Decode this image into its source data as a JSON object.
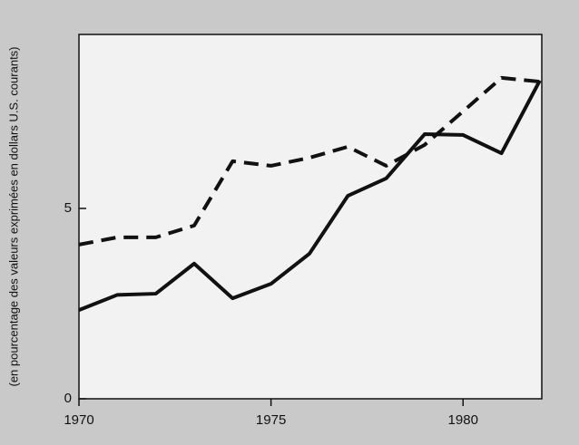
{
  "chart_data": {
    "type": "line",
    "y_label": "(en pourcentage des valeurs exprimées en dollars U.S. courants)",
    "x": [
      1970,
      1971,
      1972,
      1973,
      1974,
      1975,
      1976,
      1977,
      1978,
      1979,
      1980,
      1981,
      1982
    ],
    "series": [
      {
        "color": "#111111",
        "dash": "solid",
        "values": [
          2.33,
          2.73,
          2.76,
          3.55,
          2.64,
          3.02,
          3.81,
          5.33,
          5.79,
          6.95,
          6.93,
          6.45,
          8.36
        ]
      },
      {
        "color": "#111111",
        "dash": "dashed",
        "values": [
          4.05,
          4.24,
          4.24,
          4.55,
          6.24,
          6.12,
          6.33,
          6.62,
          6.12,
          6.67,
          7.55,
          8.43,
          8.33
        ]
      }
    ],
    "xlim": [
      1970,
      1982.05
    ],
    "xticks": [
      1970,
      1975,
      1980
    ],
    "ylim": [
      0,
      9.57
    ],
    "yticks": [
      0,
      5
    ],
    "grid": false
  }
}
